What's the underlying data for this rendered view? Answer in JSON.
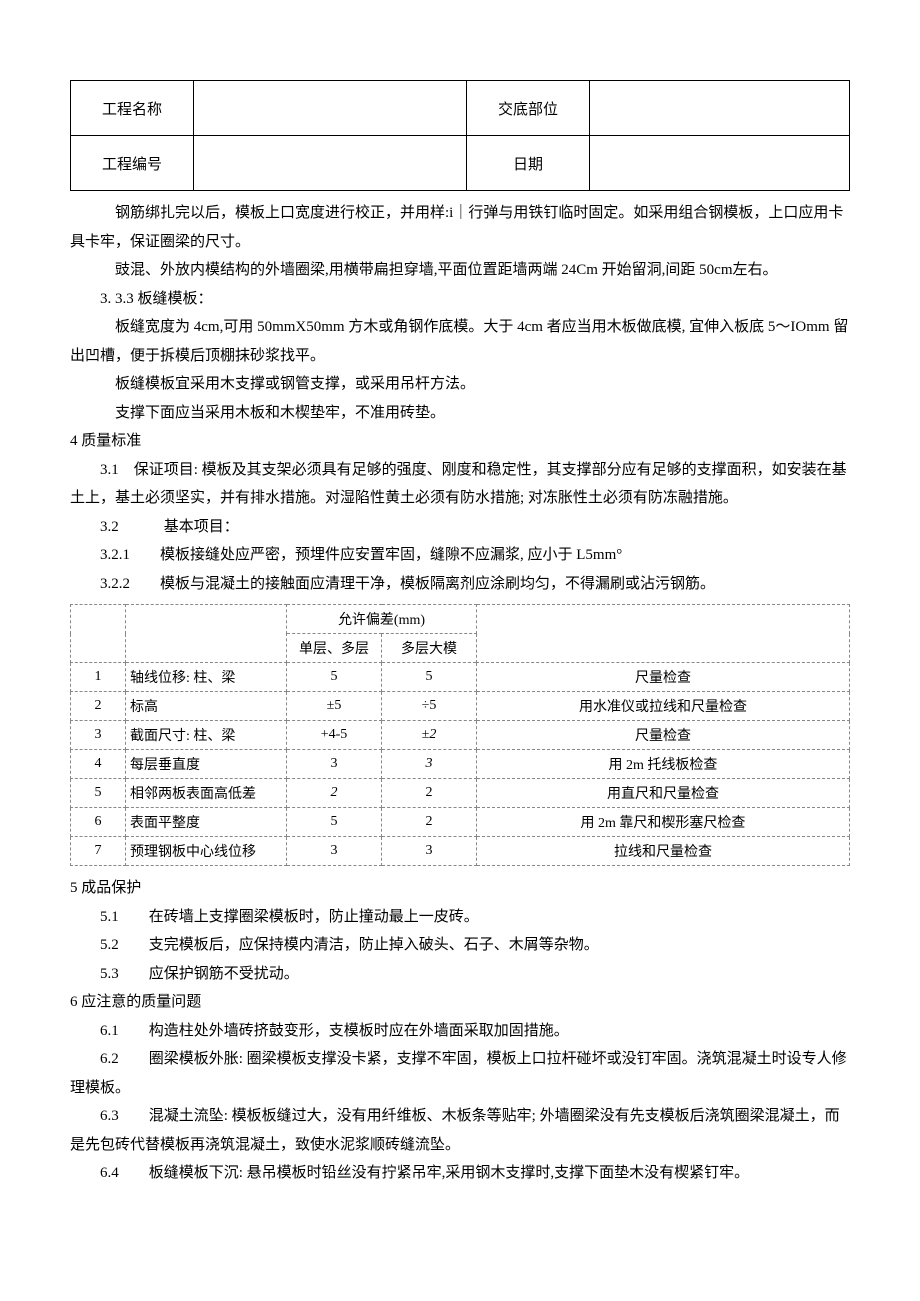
{
  "header": {
    "labels": {
      "project_name": "工程名称",
      "disclose_part": "交底部位",
      "project_code": "工程编号",
      "date": "日期"
    },
    "values": {
      "project_name": "",
      "disclose_part": "",
      "project_code": "",
      "date": ""
    }
  },
  "paragraphs": {
    "p1": "钢筋绑扎完以后，模板上口宽度进行校正，并用样:i｜行弹与用铁钉临时固定。如采用组合钢模板，上口应用卡具卡牢，保证圈梁的尺寸。",
    "p2": "豉混、外放内模结构的外墙圈梁,用横带扁担穿墙,平面位置距墙两端 24Cm 开始留洞,间距 50cm左右。",
    "p3_title": "3. 3.3 板缝模板：",
    "p3a": "板缝宽度为 4cm,可用 50mmX50mm 方木或角钢作底模。大于 4cm 者应当用木板做底模, 宜伸入板底 5～IOmm 留出凹槽，便于拆模后顶棚抹砂浆找平。",
    "p3b": "板缝模板宜采用木支撑或钢管支撑，或采用吊杆方法。",
    "p3c": "支撑下面应当采用木板和木楔垫牢，不准用砖垫。",
    "s4_title": "4 质量标准",
    "s4_1": "3.1　保证项目: 模板及其支架必须具有足够的强度、刚度和稳定性，其支撑部分应有足够的支撑面积，如安装在基土上，基土必须坚实，并有排水措施。对湿陷性黄土必须有防水措施; 对冻胀性土必须有防冻融措施。",
    "s4_2": "3.2　　　基本项目：",
    "s4_2_1": "3.2.1　　模板接缝处应严密，预埋件应安置牢固，缝隙不应漏浆, 应小于 L5mm°",
    "s4_2_2": "3.2.2　　模板与混凝土的接触面应清理干净，模板隔离剂应涂刷均匀，不得漏刷或沾污钢筋。",
    "s5_title": "5 成品保护",
    "s5_1": "5.1　　在砖墙上支撑圈梁模板时，防止撞动最上一皮砖。",
    "s5_2": "5.2　　支完模板后，应保持模内清洁，防止掉入破头、石子、木屑等杂物。",
    "s5_3": "5.3　　应保护钢筋不受扰动。",
    "s6_title": "6 应注意的质量问题",
    "s6_1": "6.1　　构造柱处外墙砖挤鼓变形，支模板时应在外墙面采取加固措施。",
    "s6_2": "6.2　　圈梁模板外胀: 圈梁模板支撑没卡紧，支撑不牢固，模板上口拉杆碰坏或没钉牢固。浇筑混凝土时设专人修理模板。",
    "s6_3": "6.3　　混凝土流坠: 模板板缝过大，没有用纤维板、木板条等贴牢; 外墙圈梁没有先支模板后浇筑圈梁混凝土，而是先包砖代替模板再浇筑混凝土，致使水泥浆顺砖缝流坠。",
    "s6_4": "6.4　　板缝模板下沉: 悬吊模板时铅丝没有拧紧吊牢,采用钢木支撑时,支撑下面垫木没有楔紧钉牢。"
  },
  "tolerance_table": {
    "header": {
      "allow_dev": "允许偏差(mm)",
      "col_single": "单层、多层",
      "col_multi": "多层大模"
    },
    "rows": [
      {
        "idx": "1",
        "item": "轴线位移: 柱、梁",
        "single": "5",
        "multi": "5",
        "method": "尺量检查"
      },
      {
        "idx": "2",
        "item": "标高",
        "single": "±5",
        "multi": "÷5",
        "method": "用水准仪或拉线和尺量检查"
      },
      {
        "idx": "3",
        "item": "截面尺寸: 柱、梁",
        "single": "+4-5",
        "multi": "±2",
        "method": "尺量检查"
      },
      {
        "idx": "4",
        "item": "每层垂直度",
        "single": "3",
        "multi": "3",
        "method": "用 2m 托线板检查"
      },
      {
        "idx": "5",
        "item": "相邻两板表面高低差",
        "single": "2",
        "multi": "2",
        "method": "用直尺和尺量检查"
      },
      {
        "idx": "6",
        "item": "表面平整度",
        "single": "5",
        "multi": "2",
        "method": "用 2m 靠尺和楔形塞尺检查"
      },
      {
        "idx": "7",
        "item": "预理钢板中心线位移",
        "single": "3",
        "multi": "3",
        "method": "拉线和尺量检查"
      }
    ]
  },
  "styles": {
    "body_font_size": 15,
    "table_font_size": 14,
    "text_color": "#000000",
    "table_border_color": "#888888",
    "background": "#ffffff"
  }
}
